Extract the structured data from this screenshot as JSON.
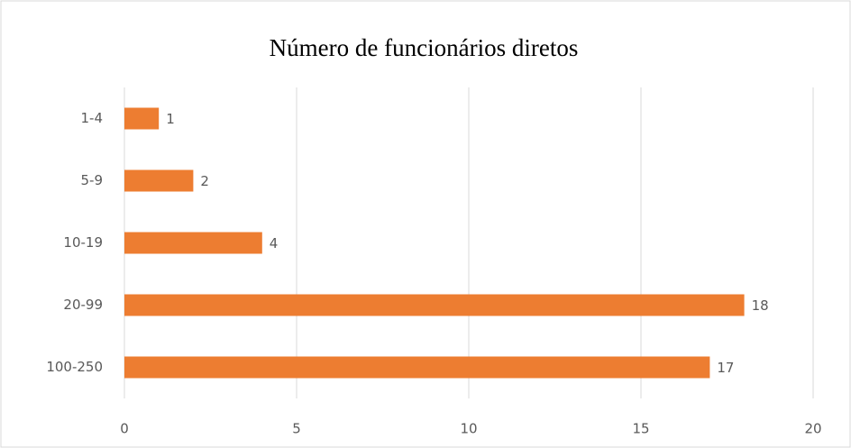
{
  "chart_data": {
    "type": "hbar",
    "title": "Número de funcionários diretos",
    "categories": [
      "1-4",
      "5-9",
      "10-19",
      "20-99",
      "100-250"
    ],
    "values": [
      1,
      2,
      4,
      18,
      17
    ],
    "color": "#ed7d31",
    "xlim": [
      0,
      20
    ],
    "xticks": [
      0,
      5,
      10,
      15,
      20
    ],
    "grid": true
  }
}
